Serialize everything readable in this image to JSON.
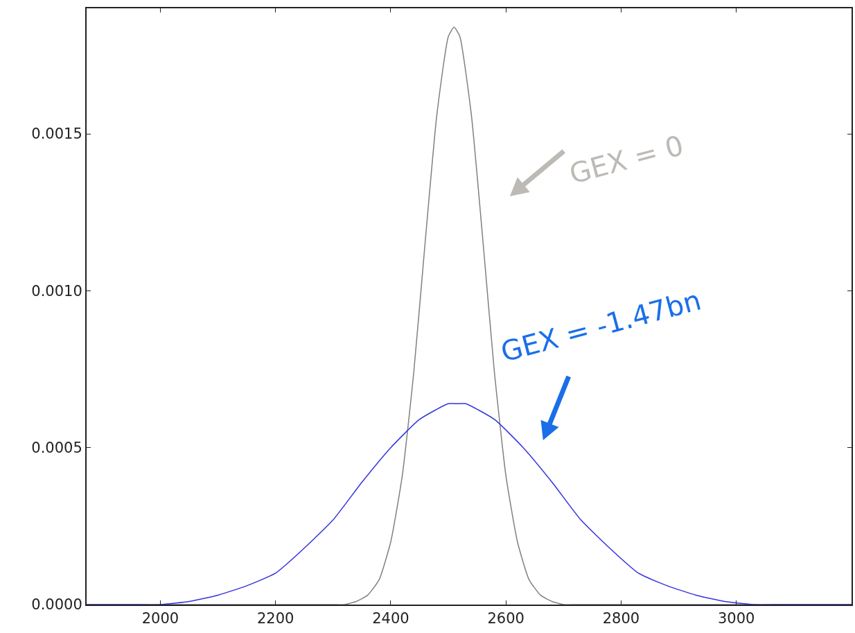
{
  "chart_data": {
    "type": "line",
    "xlim": [
      1872,
      3200
    ],
    "ylim": [
      0,
      0.0019
    ],
    "xticks": [
      2000,
      2200,
      2400,
      2600,
      2800,
      3000
    ],
    "yticks": [
      {
        "value": 0,
        "label": "0.0000"
      },
      {
        "value": 0.0005,
        "label": "0.0005"
      },
      {
        "value": 0.001,
        "label": "0.0010"
      },
      {
        "value": 0.0015,
        "label": "0.0015"
      }
    ],
    "legend": false,
    "marker": "none",
    "line_style": "solid",
    "series": [
      {
        "color": "#808080",
        "x": [
          1872,
          2200,
          2300,
          2320,
          2340,
          2360,
          2380,
          2400,
          2420,
          2440,
          2460,
          2480,
          2500,
          2510,
          2520,
          2540,
          2560,
          2580,
          2600,
          2620,
          2640,
          2660,
          2680,
          2700,
          2720,
          2800,
          3200
        ],
        "values": [
          0,
          0,
          0,
          0,
          1e-05,
          3e-05,
          8e-05,
          0.0002,
          0.00041,
          0.00074,
          0.00116,
          0.00156,
          0.00181,
          0.00184,
          0.00181,
          0.00156,
          0.00116,
          0.00074,
          0.00041,
          0.0002,
          8e-05,
          3e-05,
          1e-05,
          0,
          0,
          0,
          0
        ]
      },
      {
        "color": "#3333dd",
        "x": [
          1872,
          1900,
          1950,
          2000,
          2050,
          2100,
          2150,
          2200,
          2250,
          2300,
          2350,
          2400,
          2450,
          2500,
          2515,
          2530,
          2580,
          2630,
          2680,
          2730,
          2780,
          2830,
          2880,
          2930,
          2980,
          3030,
          3080,
          3130,
          3200
        ],
        "values": [
          0,
          0,
          0,
          0,
          1e-05,
          3e-05,
          6e-05,
          0.0001,
          0.00018,
          0.00027,
          0.00039,
          0.0005,
          0.00059,
          0.00064,
          0.00064,
          0.00064,
          0.00059,
          0.0005,
          0.00039,
          0.00027,
          0.00018,
          0.0001,
          6e-05,
          3e-05,
          1e-05,
          0,
          0,
          0,
          0
        ]
      }
    ],
    "annotations": [
      "GEX = 0",
      "GEX = -1.47bn"
    ]
  }
}
